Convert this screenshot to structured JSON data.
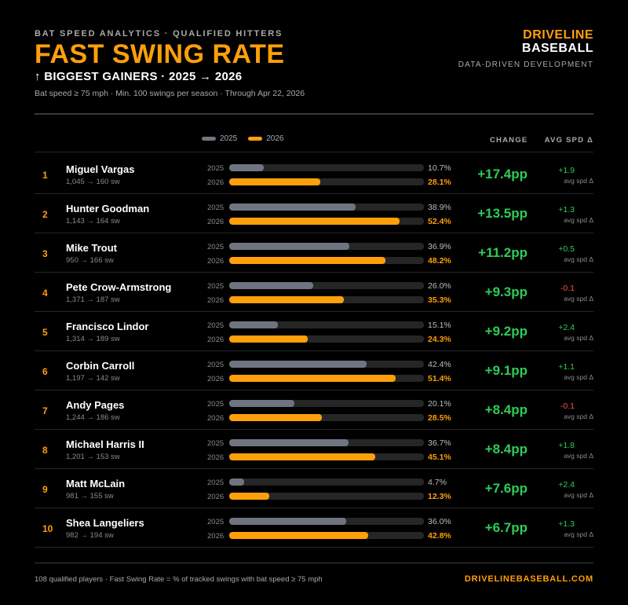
{
  "header": {
    "kicker": "BAT SPEED ANALYTICS · QUALIFIED HITTERS",
    "title": "FAST SWING RATE",
    "subtitle": "↑ BIGGEST GAINERS · 2025 → 2026",
    "note": "Bat speed ≥ 75 mph · Min. 100 swings per season · Through Apr 22, 2026"
  },
  "brand": {
    "line1": "DRIVELINE",
    "line2": "BASEBALL",
    "tagline": "DATA-DRIVEN DEVELOPMENT"
  },
  "columns": {
    "change": "CHANGE",
    "avg_spd": "AVG SPD Δ",
    "avg_spd_sub": "avg spd Δ"
  },
  "colors": {
    "accent": "#ff9f0a",
    "series_2025": "#6f7580",
    "series_2026": "#ff9f0a",
    "positive": "#2ecc59",
    "negative": "#ff4d4d"
  },
  "chart_data": {
    "type": "bar",
    "title": "FAST SWING RATE",
    "subtitle": "↑ BIGGEST GAINERS · 2025 → 2026",
    "legend": [
      "2025",
      "2026"
    ],
    "legend_position": "top",
    "xlim": [
      0,
      60
    ],
    "unit": "%",
    "rows": [
      {
        "rank": "1",
        "player": "Miguel Vargas",
        "swings": "1,045 → 160 sw",
        "v2025": 10.7,
        "v2026": 28.1,
        "v2025_label": "10.7%",
        "v2026_label": "28.1%",
        "change": "+17.4pp",
        "avg_spd": "+1.9"
      },
      {
        "rank": "2",
        "player": "Hunter Goodman",
        "swings": "1,143 → 164 sw",
        "v2025": 38.9,
        "v2026": 52.4,
        "v2025_label": "38.9%",
        "v2026_label": "52.4%",
        "change": "+13.5pp",
        "avg_spd": "+1.3"
      },
      {
        "rank": "3",
        "player": "Mike Trout",
        "swings": "950 → 166 sw",
        "v2025": 36.9,
        "v2026": 48.2,
        "v2025_label": "36.9%",
        "v2026_label": "48.2%",
        "change": "+11.2pp",
        "avg_spd": "+0.5"
      },
      {
        "rank": "4",
        "player": "Pete Crow-Armstrong",
        "swings": "1,371 → 187 sw",
        "v2025": 26.0,
        "v2026": 35.3,
        "v2025_label": "26.0%",
        "v2026_label": "35.3%",
        "change": "+9.3pp",
        "avg_spd": "-0.1"
      },
      {
        "rank": "5",
        "player": "Francisco Lindor",
        "swings": "1,314 → 189 sw",
        "v2025": 15.1,
        "v2026": 24.3,
        "v2025_label": "15.1%",
        "v2026_label": "24.3%",
        "change": "+9.2pp",
        "avg_spd": "+2.4"
      },
      {
        "rank": "6",
        "player": "Corbin Carroll",
        "swings": "1,197 → 142 sw",
        "v2025": 42.4,
        "v2026": 51.4,
        "v2025_label": "42.4%",
        "v2026_label": "51.4%",
        "change": "+9.1pp",
        "avg_spd": "+1.1"
      },
      {
        "rank": "7",
        "player": "Andy Pages",
        "swings": "1,244 → 186 sw",
        "v2025": 20.1,
        "v2026": 28.5,
        "v2025_label": "20.1%",
        "v2026_label": "28.5%",
        "change": "+8.4pp",
        "avg_spd": "-0.1"
      },
      {
        "rank": "8",
        "player": "Michael Harris II",
        "swings": "1,201 → 153 sw",
        "v2025": 36.7,
        "v2026": 45.1,
        "v2025_label": "36.7%",
        "v2026_label": "45.1%",
        "change": "+8.4pp",
        "avg_spd": "+1.8"
      },
      {
        "rank": "9",
        "player": "Matt McLain",
        "swings": "981 → 155 sw",
        "v2025": 4.7,
        "v2026": 12.3,
        "v2025_label": "4.7%",
        "v2026_label": "12.3%",
        "change": "+7.6pp",
        "avg_spd": "+2.4"
      },
      {
        "rank": "10",
        "player": "Shea Langeliers",
        "swings": "982 → 194 sw",
        "v2025": 36.0,
        "v2026": 42.8,
        "v2025_label": "36.0%",
        "v2026_label": "42.8%",
        "change": "+6.7pp",
        "avg_spd": "+1.3"
      }
    ]
  },
  "footer": {
    "note": "108 qualified players · Fast Swing Rate = % of tracked swings with bat speed ≥ 75 mph",
    "site": "DRIVELINEBASEBALL.COM"
  }
}
